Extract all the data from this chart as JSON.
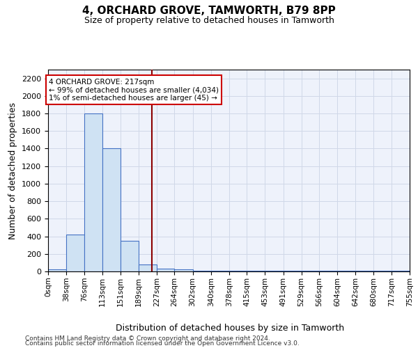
{
  "title": "4, ORCHARD GROVE, TAMWORTH, B79 8PP",
  "subtitle": "Size of property relative to detached houses in Tamworth",
  "xlabel": "Distribution of detached houses by size in Tamworth",
  "ylabel": "Number of detached properties",
  "bin_edges": [
    0,
    38,
    76,
    113,
    151,
    189,
    227,
    264,
    302,
    340,
    378,
    415,
    453,
    491,
    529,
    566,
    604,
    642,
    680,
    717,
    755
  ],
  "bar_heights": [
    25,
    420,
    1800,
    1400,
    350,
    80,
    30,
    20,
    10,
    5,
    5,
    5,
    5,
    5,
    5,
    5,
    5,
    5,
    5,
    5
  ],
  "bar_facecolor": "#cfe2f3",
  "bar_edgecolor": "#4472c4",
  "grid_color": "#d0d8e8",
  "background_color": "#eef2fb",
  "red_line_x": 217,
  "red_line_color": "#8b0000",
  "ylim": [
    0,
    2300
  ],
  "yticks": [
    0,
    200,
    400,
    600,
    800,
    1000,
    1200,
    1400,
    1600,
    1800,
    2000,
    2200
  ],
  "annotation_title": "4 ORCHARD GROVE: 217sqm",
  "annotation_line1": "← 99% of detached houses are smaller (4,034)",
  "annotation_line2": "1% of semi-detached houses are larger (45) →",
  "annotation_box_facecolor": "#ffffff",
  "annotation_box_edgecolor": "#cc0000",
  "footnote1": "Contains HM Land Registry data © Crown copyright and database right 2024.",
  "footnote2": "Contains public sector information licensed under the Open Government Licence v3.0."
}
